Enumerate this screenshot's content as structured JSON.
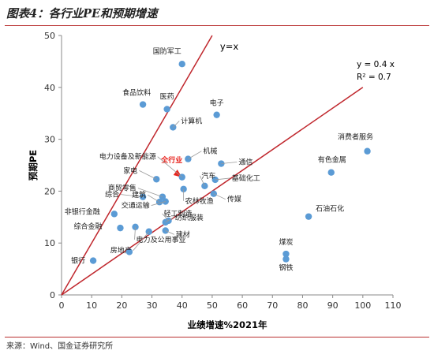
{
  "figure": {
    "title": "图表4：各行业PE和预期增速",
    "source": "来源：Wind、国金证券研究所"
  },
  "chart_data": {
    "type": "scatter",
    "xlabel": "业绩增速%2021年",
    "ylabel": "预期PE",
    "xlim": [
      0,
      110
    ],
    "ylim": [
      0,
      50
    ],
    "xticks": [
      0,
      10,
      20,
      30,
      40,
      50,
      60,
      70,
      80,
      90,
      100,
      110
    ],
    "yticks": [
      0,
      10,
      20,
      30,
      40,
      50
    ],
    "grid": false,
    "series_color": "#5b9bd5",
    "highlight_color": "#e8251f",
    "line_color": "#c0272d",
    "reference_line": {
      "label": "y=x",
      "slope": 1
    },
    "trend_line": {
      "slope": 0.4,
      "equation": "y = 0.4 x",
      "r2": "R² = 0.7",
      "x_end": 100
    },
    "points": [
      {
        "label": "国防军工",
        "x": 40,
        "y": 44.5
      },
      {
        "label": "食品饮料",
        "x": 27,
        "y": 36.7
      },
      {
        "label": "医药",
        "x": 35,
        "y": 35.8
      },
      {
        "label": "电子",
        "x": 51.5,
        "y": 34.7
      },
      {
        "label": "计算机",
        "x": 37,
        "y": 32.3
      },
      {
        "label": "消费者服务",
        "x": 101.5,
        "y": 27.7
      },
      {
        "label": "机械",
        "x": 42,
        "y": 26.2
      },
      {
        "label": "全行业",
        "x": 40,
        "y": 22.8,
        "highlight": true
      },
      {
        "label": "通信",
        "x": 53,
        "y": 25.3
      },
      {
        "label": "有色金属",
        "x": 89.5,
        "y": 23.6
      },
      {
        "label": "电力设备及新能源",
        "x": 40,
        "y": 22.7
      },
      {
        "label": "家电",
        "x": 31.5,
        "y": 22.3
      },
      {
        "label": "汽车",
        "x": 47.5,
        "y": 21.0
      },
      {
        "label": "基础化工",
        "x": 51,
        "y": 22.2
      },
      {
        "label": "商贸零售",
        "x": 33.5,
        "y": 18.9
      },
      {
        "label": "综合",
        "x": 27,
        "y": 18.9
      },
      {
        "label": "农林牧渔",
        "x": 40.5,
        "y": 20.4
      },
      {
        "label": "传媒",
        "x": 50.5,
        "y": 19.5
      },
      {
        "label": "石油石化",
        "x": 82,
        "y": 15.1
      },
      {
        "label": "非银行金融",
        "x": 17.5,
        "y": 15.6
      },
      {
        "label": "建筑",
        "x": 32.5,
        "y": 17.9
      },
      {
        "label": "交通运输",
        "x": 34.5,
        "y": 18.0
      },
      {
        "label": "轻工制造",
        "x": 35.5,
        "y": 14.3
      },
      {
        "label": "纺织服装",
        "x": 34.5,
        "y": 14.0
      },
      {
        "label": "综合金融",
        "x": 19.5,
        "y": 12.9
      },
      {
        "label": "建材",
        "x": 34.5,
        "y": 12.4
      },
      {
        "label": "煤炭",
        "x": 74.5,
        "y": 7.9
      },
      {
        "label": "钢铁",
        "x": 74.5,
        "y": 6.9
      },
      {
        "label": "电力及公用事业",
        "x": 24.5,
        "y": 13.1
      },
      {
        "label": "房地产",
        "x": 29.0,
        "y": 12.2
      },
      {
        "label": "银行",
        "x": 10.5,
        "y": 6.6
      },
      {
        "label": "",
        "x": 22.5,
        "y": 8.3
      }
    ]
  }
}
